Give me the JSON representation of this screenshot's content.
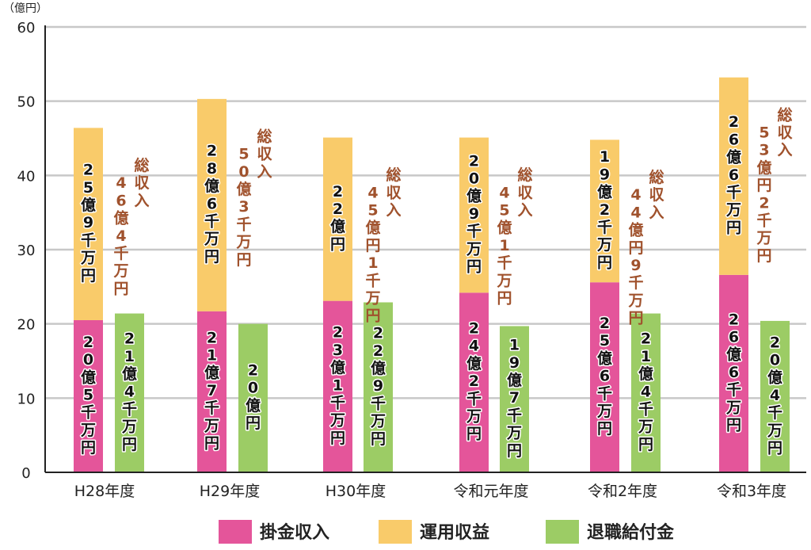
{
  "chart_data": {
    "type": "bar",
    "unit_label": "（億円）",
    "categories": [
      "H28年度",
      "H29年度",
      "H30年度",
      "令和元年度",
      "令和2年度",
      "令和3年度"
    ],
    "ylim": [
      0,
      60
    ],
    "yticks": [
      0,
      10,
      20,
      30,
      40,
      50,
      60
    ],
    "grid": true,
    "legend_position": "bottom",
    "series": [
      {
        "name": "掛金収入",
        "color": "#e4559a",
        "stack": "income",
        "values": [
          20.5,
          21.7,
          23.1,
          24.2,
          25.6,
          26.6
        ],
        "labels": [
          "20億5千万円",
          "21億7千万円",
          "23億1千万円",
          "24億2千万円",
          "25億6千万円",
          "26億6千万円"
        ]
      },
      {
        "name": "運用収益",
        "color": "#f9cb6a",
        "stack": "income",
        "values": [
          25.9,
          28.6,
          22.0,
          20.9,
          19.2,
          26.6
        ],
        "labels": [
          "25億9千万円",
          "28億6千万円",
          "22億円",
          "20億9千万円",
          "19億2千万円",
          "26億6千万円"
        ]
      },
      {
        "name": "退職給付金",
        "color": "#9ccc65",
        "stack": "payout",
        "values": [
          21.4,
          20.0,
          22.9,
          19.7,
          21.4,
          20.4
        ],
        "labels": [
          "21億4千万円",
          "20億円",
          "22億9千万円",
          "19億7千万円",
          "21億4千万円",
          "20億4千万円"
        ]
      }
    ],
    "totals": {
      "color": "#a0522d",
      "labels": [
        "46億4千万円総収入",
        "50億3千万円総収入",
        "45億円1千万円総収入",
        "45億1千万円総収入",
        "44億円9千万円総収入",
        "53億円2千万円総収入"
      ]
    }
  }
}
